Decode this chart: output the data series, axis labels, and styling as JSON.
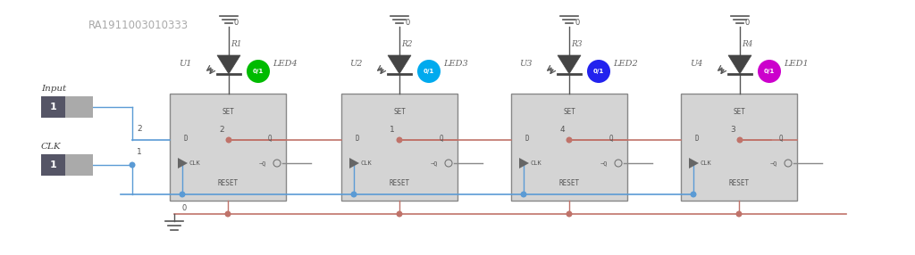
{
  "bg_color": "#ffffff",
  "title_text": "RA1911003010333",
  "wire_blue": "#5b9bd5",
  "wire_red": "#c0736a",
  "wire_gray": "#888888",
  "flip_flop_fill": "#d4d4d4",
  "flip_flop_edge": "#888888",
  "led_colors": [
    "#00bb00",
    "#00aaee",
    "#2222ee",
    "#cc00cc"
  ],
  "led_labels": [
    "LED4",
    "LED3",
    "LED2",
    "LED1"
  ],
  "u_labels": [
    "U1",
    "U2",
    "U3",
    "U4"
  ],
  "r_labels": [
    "R1",
    "R2",
    "R3",
    "R4"
  ],
  "node_q_labels": [
    "2",
    "1",
    "4",
    "3"
  ],
  "switch_dark": "#555566",
  "switch_light": "#aaaaaa",
  "text_color": "#555555",
  "vcc_color": "#555555"
}
